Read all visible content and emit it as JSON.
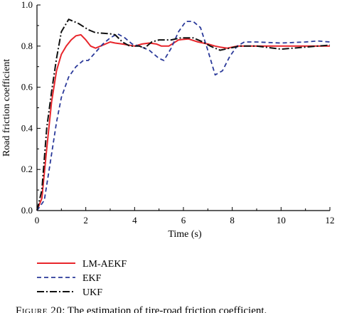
{
  "chart_data": {
    "type": "line",
    "xlabel": "Time (s)",
    "ylabel": "Road friction coefficient",
    "xlim": [
      0,
      12
    ],
    "ylim": [
      0,
      1.0
    ],
    "x_ticks": [
      "0",
      "2",
      "4",
      "6",
      "8",
      "10",
      "12"
    ],
    "y_ticks": [
      "0.0",
      "0.2",
      "0.4",
      "0.6",
      "0.8",
      "1.0"
    ],
    "grid": false,
    "legend_position": "bottom-left",
    "series": [
      {
        "name": "LM-AEKF",
        "color": "#e8262c",
        "dash": "solid",
        "points": [
          [
            0,
            0
          ],
          [
            0.2,
            0.06
          ],
          [
            0.4,
            0.3
          ],
          [
            0.6,
            0.53
          ],
          [
            0.8,
            0.68
          ],
          [
            1.0,
            0.76
          ],
          [
            1.2,
            0.8
          ],
          [
            1.4,
            0.83
          ],
          [
            1.6,
            0.85
          ],
          [
            1.8,
            0.855
          ],
          [
            2.0,
            0.83
          ],
          [
            2.2,
            0.8
          ],
          [
            2.4,
            0.79
          ],
          [
            2.6,
            0.8
          ],
          [
            2.8,
            0.81
          ],
          [
            3.0,
            0.82
          ],
          [
            3.2,
            0.815
          ],
          [
            3.5,
            0.81
          ],
          [
            4.0,
            0.8
          ],
          [
            4.3,
            0.81
          ],
          [
            4.6,
            0.815
          ],
          [
            4.9,
            0.81
          ],
          [
            5.1,
            0.8
          ],
          [
            5.4,
            0.8
          ],
          [
            5.8,
            0.83
          ],
          [
            6.2,
            0.835
          ],
          [
            6.6,
            0.82
          ],
          [
            7.0,
            0.81
          ],
          [
            7.3,
            0.8
          ],
          [
            7.5,
            0.795
          ],
          [
            7.8,
            0.79
          ],
          [
            8.2,
            0.8
          ],
          [
            9.0,
            0.8
          ],
          [
            10.0,
            0.8
          ],
          [
            11.0,
            0.8
          ],
          [
            12.0,
            0.8
          ]
        ]
      },
      {
        "name": "EKF",
        "color": "#2b3a9a",
        "dash": "dashed",
        "points": [
          [
            0,
            0
          ],
          [
            0.3,
            0.05
          ],
          [
            0.5,
            0.2
          ],
          [
            0.8,
            0.43
          ],
          [
            1.0,
            0.55
          ],
          [
            1.3,
            0.65
          ],
          [
            1.6,
            0.7
          ],
          [
            1.9,
            0.73
          ],
          [
            2.1,
            0.73
          ],
          [
            2.4,
            0.77
          ],
          [
            2.7,
            0.81
          ],
          [
            3.0,
            0.84
          ],
          [
            3.3,
            0.86
          ],
          [
            3.6,
            0.84
          ],
          [
            3.9,
            0.81
          ],
          [
            4.2,
            0.8
          ],
          [
            4.6,
            0.78
          ],
          [
            5.0,
            0.74
          ],
          [
            5.2,
            0.73
          ],
          [
            5.5,
            0.79
          ],
          [
            5.8,
            0.87
          ],
          [
            6.1,
            0.92
          ],
          [
            6.4,
            0.92
          ],
          [
            6.7,
            0.89
          ],
          [
            7.0,
            0.78
          ],
          [
            7.3,
            0.66
          ],
          [
            7.6,
            0.68
          ],
          [
            7.9,
            0.75
          ],
          [
            8.2,
            0.8
          ],
          [
            8.5,
            0.82
          ],
          [
            9.0,
            0.82
          ],
          [
            10.0,
            0.815
          ],
          [
            11.0,
            0.82
          ],
          [
            11.5,
            0.825
          ],
          [
            12.0,
            0.82
          ]
        ]
      },
      {
        "name": "UKF",
        "color": "#111111",
        "dash": "dashdot",
        "points": [
          [
            0,
            0
          ],
          [
            0.2,
            0.1
          ],
          [
            0.4,
            0.4
          ],
          [
            0.6,
            0.58
          ],
          [
            0.8,
            0.74
          ],
          [
            1.0,
            0.87
          ],
          [
            1.3,
            0.93
          ],
          [
            1.7,
            0.91
          ],
          [
            2.1,
            0.88
          ],
          [
            2.4,
            0.865
          ],
          [
            3.0,
            0.86
          ],
          [
            3.2,
            0.855
          ],
          [
            3.5,
            0.82
          ],
          [
            3.8,
            0.8
          ],
          [
            4.2,
            0.8
          ],
          [
            4.4,
            0.79
          ],
          [
            4.7,
            0.82
          ],
          [
            5.0,
            0.83
          ],
          [
            5.5,
            0.83
          ],
          [
            5.9,
            0.84
          ],
          [
            6.4,
            0.84
          ],
          [
            6.8,
            0.82
          ],
          [
            7.1,
            0.8
          ],
          [
            7.5,
            0.78
          ],
          [
            7.9,
            0.79
          ],
          [
            8.3,
            0.8
          ],
          [
            9.0,
            0.8
          ],
          [
            10.0,
            0.785
          ],
          [
            11.0,
            0.795
          ],
          [
            12.0,
            0.805
          ]
        ]
      }
    ]
  },
  "caption": {
    "label": "Figure 20",
    "text": ": The estimation of tire-road friction coefficient."
  }
}
